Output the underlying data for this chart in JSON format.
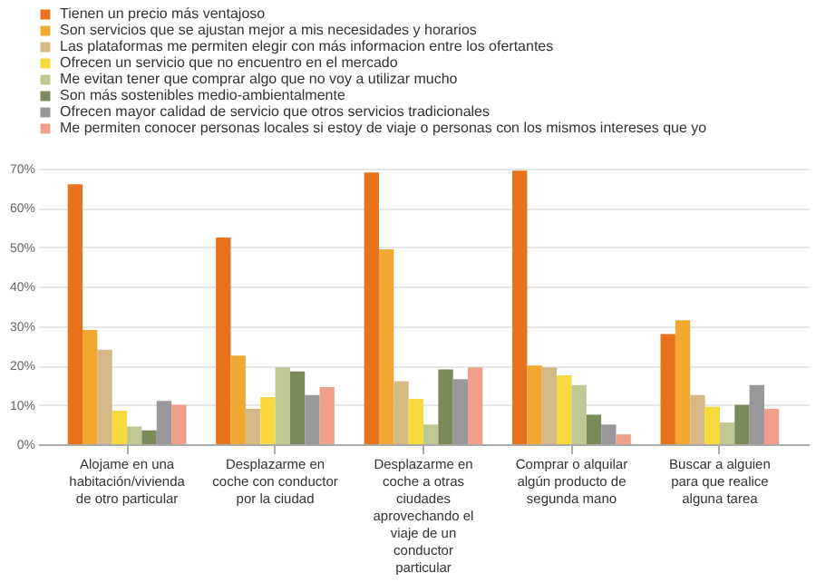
{
  "chart_data": {
    "type": "bar",
    "categories": [
      "Alojame en una habitación/vivienda de otro particular",
      "Desplazarme en coche con conductor por la ciudad",
      "Desplazarme en coche a otras ciudades aprovechando el viaje de un conductor particular",
      "Comprar o alquilar algún producto de segunda mano",
      "Buscar a alguien para que realice alguna tarea"
    ],
    "series": [
      {
        "name": "Tienen un precio más ventajoso",
        "color": "#e8711b",
        "values": [
          66,
          52.5,
          69,
          69.5,
          28
        ]
      },
      {
        "name": "Son servicios que se ajustan mejor a mis necesidades y horarios",
        "color": "#f0a830",
        "values": [
          29,
          22.5,
          49.5,
          20,
          31.5
        ]
      },
      {
        "name": "Las plataformas me permiten elegir con más informacion entre los ofertantes",
        "color": "#d4b886",
        "values": [
          24,
          9,
          16,
          19.5,
          12.5
        ]
      },
      {
        "name": "Ofrecen un servicio que no encuentro en el mercado",
        "color": "#f7d93e",
        "values": [
          8.5,
          12,
          11.5,
          17.5,
          9.5
        ]
      },
      {
        "name": "Me evitan tener que comprar algo que no voy a utilizar mucho",
        "color": "#bfc793",
        "values": [
          4.5,
          19.5,
          5,
          15,
          5.5
        ]
      },
      {
        "name": "Son más sostenibles medio-ambientalmente",
        "color": "#7a8a5a",
        "values": [
          3.5,
          18.5,
          19,
          7.5,
          10
        ]
      },
      {
        "name": "Ofrecen mayor calidad de servicio que otros servicios tradicionales",
        "color": "#9a979a",
        "values": [
          11,
          12.5,
          16.5,
          5,
          15
        ]
      },
      {
        "name": "Me permiten conocer personas locales si estoy de viaje o personas con los mismos intereses que yo",
        "color": "#f0a08a",
        "values": [
          10,
          14.5,
          19.5,
          2.5,
          9
        ]
      }
    ],
    "ylim": [
      0,
      70
    ],
    "yticks": [
      {
        "value": 0,
        "label": "0%"
      },
      {
        "value": 10,
        "label": "10%"
      },
      {
        "value": 20,
        "label": "20%"
      },
      {
        "value": 30,
        "label": "30%"
      },
      {
        "value": 40,
        "label": "40%"
      },
      {
        "value": 50,
        "label": "50%"
      },
      {
        "value": 60,
        "label": "60%"
      },
      {
        "value": 70,
        "label": "70%"
      }
    ],
    "grid": "y",
    "legend": "top"
  }
}
